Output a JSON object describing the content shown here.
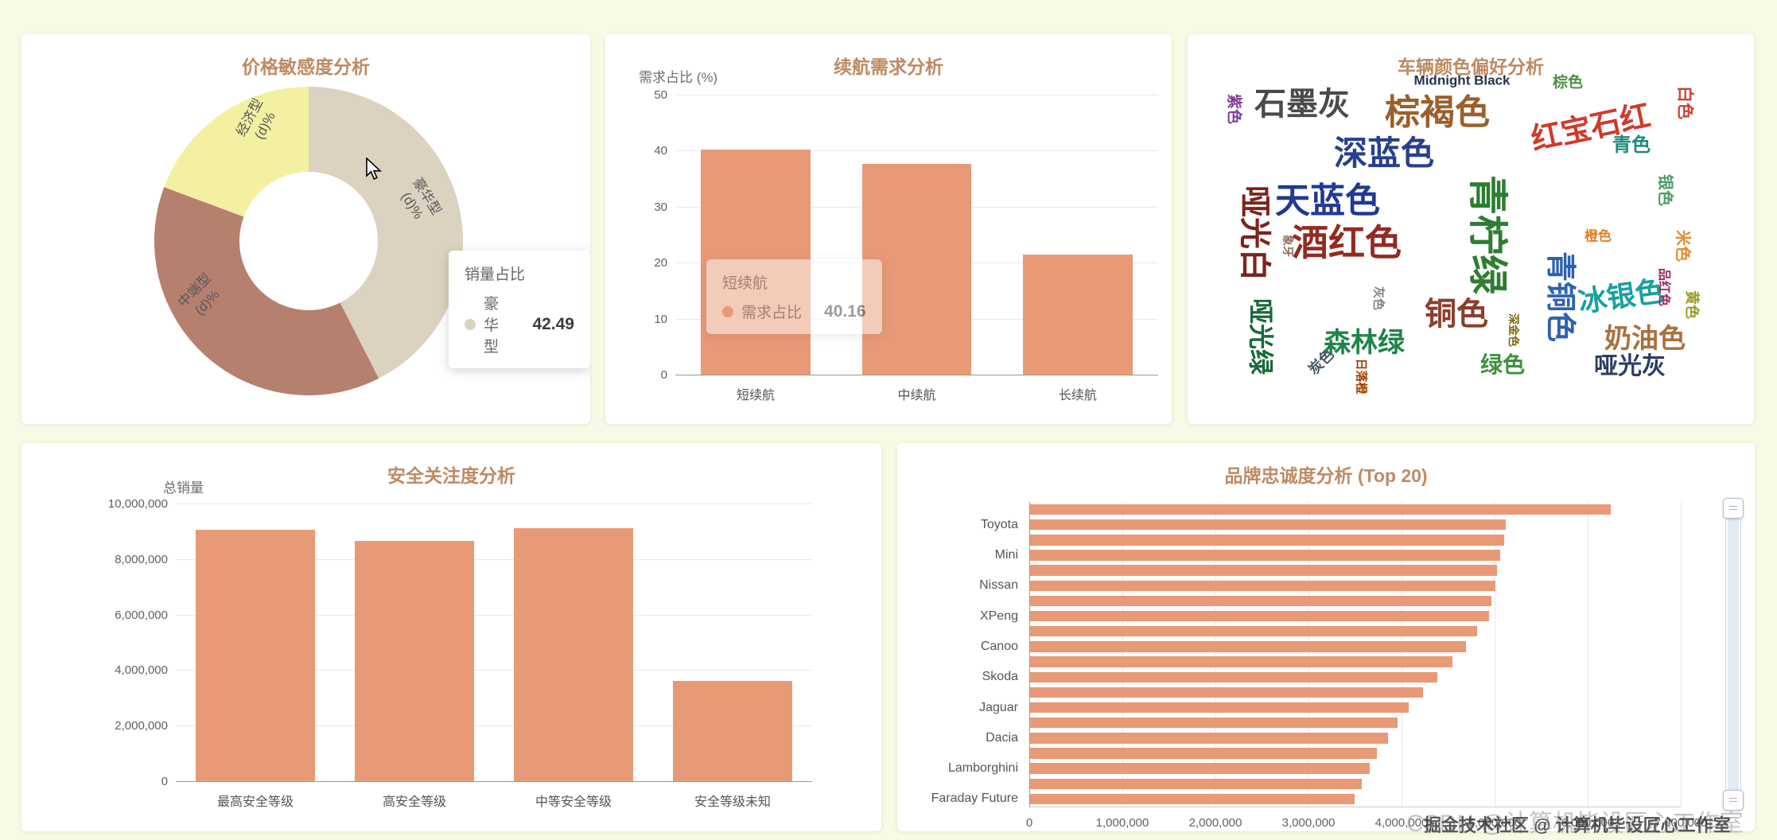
{
  "page": {
    "background_color": "#f8fae6",
    "card_background": "#ffffff",
    "title_color": "#bf8a62"
  },
  "watermarks": {
    "csdn": "CSDN @计算机毕设匠心工作室",
    "juejin": "掘金技术社区 @ 计算机毕设匠心工作室"
  },
  "chart_data": [
    {
      "id": "price-sensitivity-pie",
      "type": "pie",
      "title": "价格敏感度分析",
      "series_name": "销量占比",
      "slices": [
        {
          "name": "豪华型",
          "value": 42.49,
          "color": "#dcd2c0",
          "label": "豪华型\n(d)%"
        },
        {
          "name": "中端型",
          "value": 38.2,
          "color": "#b5806e",
          "label": "中端型\n(d)%"
        },
        {
          "name": "经济型",
          "value": 19.31,
          "color": "#f4f0a2",
          "label": "经济型\n(d)%"
        }
      ],
      "tooltip": {
        "title": "销量占比",
        "name": "豪华型",
        "value": "42.49",
        "marker_color": "#dcd2c0"
      }
    },
    {
      "id": "range-demand-bar",
      "type": "bar",
      "title": "续航需求分析",
      "ylabel": "需求占比 (%)",
      "categories": [
        "短续航",
        "中续航",
        "长续航"
      ],
      "values": [
        40.16,
        37.7,
        21.4
      ],
      "ylim": [
        0,
        50
      ],
      "yticks": [
        "0",
        "10",
        "20",
        "30",
        "40",
        "50"
      ],
      "ytick_values": [
        0,
        10,
        20,
        30,
        40,
        50
      ],
      "bar_color": "#e89a77",
      "tooltip": {
        "title": "短续航",
        "series": "需求占比",
        "value": "40.16",
        "marker_color": "#e89a77"
      }
    },
    {
      "id": "color-preference-wordcloud",
      "type": "wordcloud",
      "title": "车辆颜色偏好分析",
      "words": [
        {
          "text": "石墨灰",
          "x": 144,
          "y": 88,
          "size": 40,
          "color": "#4a4a4a",
          "rotate": 0
        },
        {
          "text": "棕褐色",
          "x": 314,
          "y": 99,
          "size": 44,
          "color": "#9a5f2a",
          "rotate": 0
        },
        {
          "text": "Midnight Black",
          "x": 345,
          "y": 58,
          "size": 17,
          "color": "#22334f",
          "rotate": 0
        },
        {
          "text": "棕色",
          "x": 478,
          "y": 61,
          "size": 19,
          "color": "#4c9141",
          "rotate": 0
        },
        {
          "text": "白色",
          "x": 625,
          "y": 86,
          "size": 21,
          "color": "#cb4335",
          "rotate": 90
        },
        {
          "text": "紫色",
          "x": 58,
          "y": 94,
          "size": 19,
          "color": "#7d3c98",
          "rotate": 90
        },
        {
          "text": "红宝石红",
          "x": 507,
          "y": 118,
          "size": 38,
          "color": "#d03a2b",
          "rotate": -12
        },
        {
          "text": "深蓝色",
          "x": 247,
          "y": 150,
          "size": 42,
          "color": "#27408b",
          "rotate": 0
        },
        {
          "text": "青色",
          "x": 558,
          "y": 140,
          "size": 24,
          "color": "#20897e",
          "rotate": 0
        },
        {
          "text": "银色",
          "x": 600,
          "y": 196,
          "size": 20,
          "color": "#4f9d69",
          "rotate": 90
        },
        {
          "text": "天蓝色",
          "x": 176,
          "y": 210,
          "size": 44,
          "color": "#1f3a93",
          "rotate": 0
        },
        {
          "text": "青柠绿",
          "x": 377,
          "y": 252,
          "size": 50,
          "color": "#2e7d32",
          "rotate": 90
        },
        {
          "text": "哑光白",
          "x": 84,
          "y": 250,
          "size": 40,
          "color": "#7b241c",
          "rotate": 90
        },
        {
          "text": "酒红色",
          "x": 200,
          "y": 262,
          "size": 46,
          "color": "#922b21",
          "rotate": 0
        },
        {
          "text": "象牙",
          "x": 126,
          "y": 266,
          "size": 14,
          "color": "#8d6e63",
          "rotate": 90
        },
        {
          "text": "青铜色",
          "x": 468,
          "y": 330,
          "size": 38,
          "color": "#2e61b0",
          "rotate": 90
        },
        {
          "text": "冰银色",
          "x": 545,
          "y": 330,
          "size": 36,
          "color": "#18a0a0",
          "rotate": -8
        },
        {
          "text": "米色",
          "x": 622,
          "y": 266,
          "size": 20,
          "color": "#e08e2d",
          "rotate": 90
        },
        {
          "text": "橙色",
          "x": 516,
          "y": 254,
          "size": 17,
          "color": "#e67e22",
          "rotate": 0
        },
        {
          "text": "铜色",
          "x": 338,
          "y": 352,
          "size": 40,
          "color": "#8c3d2b",
          "rotate": 0
        },
        {
          "text": "灰色",
          "x": 240,
          "y": 332,
          "size": 15,
          "color": "#808080",
          "rotate": 90
        },
        {
          "text": "森林绿",
          "x": 222,
          "y": 388,
          "size": 34,
          "color": "#1e8449",
          "rotate": 0
        },
        {
          "text": "哑光绿",
          "x": 92,
          "y": 380,
          "size": 32,
          "color": "#186a3b",
          "rotate": 90
        },
        {
          "text": "炭色",
          "x": 168,
          "y": 412,
          "size": 18,
          "color": "#455a64",
          "rotate": -45
        },
        {
          "text": "日落橙",
          "x": 218,
          "y": 430,
          "size": 15,
          "color": "#a04000",
          "rotate": 90
        },
        {
          "text": "绿色",
          "x": 396,
          "y": 416,
          "size": 28,
          "color": "#3d9140",
          "rotate": 0
        },
        {
          "text": "深金色",
          "x": 410,
          "y": 372,
          "size": 14,
          "color": "#7d6608",
          "rotate": 90
        },
        {
          "text": "奶油色",
          "x": 575,
          "y": 383,
          "size": 34,
          "color": "#a9713b",
          "rotate": 0
        },
        {
          "text": "哑光灰",
          "x": 556,
          "y": 418,
          "size": 30,
          "color": "#2c3e63",
          "rotate": 0
        },
        {
          "text": "黄色",
          "x": 634,
          "y": 340,
          "size": 18,
          "color": "#9a9a20",
          "rotate": 90
        },
        {
          "text": "品红色",
          "x": 598,
          "y": 318,
          "size": 16,
          "color": "#9b2d5d",
          "rotate": 90
        }
      ]
    },
    {
      "id": "safety-attention-bar",
      "type": "bar",
      "title": "安全关注度分析",
      "ylabel": "总销量",
      "categories": [
        "最高安全等级",
        "高安全等级",
        "中等安全等级",
        "安全等级未知"
      ],
      "values": [
        9050000,
        8650000,
        9100000,
        3600000
      ],
      "ylim": [
        0,
        10000000
      ],
      "yticks": [
        "0",
        "2,000,000",
        "4,000,000",
        "6,000,000",
        "8,000,000",
        "10,000,000"
      ],
      "ytick_values": [
        0,
        2000000,
        4000000,
        6000000,
        8000000,
        10000000
      ],
      "bar_color": "#e89a77"
    },
    {
      "id": "brand-loyalty-hbar",
      "type": "hbar",
      "title": "品牌忠诚度分析 (Top 20)",
      "xlim": [
        0,
        7000000
      ],
      "xticks": [
        "0",
        "1,000,000",
        "2,000,000",
        "3,000,000",
        "4,000,000",
        "5,000,000",
        "6,000,000",
        "7,000,000"
      ],
      "xtick_values": [
        0,
        1000000,
        2000000,
        3000000,
        4000000,
        5000000,
        6000000,
        7000000
      ],
      "bar_color": "#e89a77",
      "rows": [
        {
          "label": "",
          "value": 6240000
        },
        {
          "label": "Toyota",
          "value": 5110000
        },
        {
          "label": "",
          "value": 5090000
        },
        {
          "label": "Mini",
          "value": 5050000
        },
        {
          "label": "",
          "value": 5020000
        },
        {
          "label": "Nissan",
          "value": 5000000
        },
        {
          "label": "",
          "value": 4960000
        },
        {
          "label": "XPeng",
          "value": 4930000
        },
        {
          "label": "",
          "value": 4800000
        },
        {
          "label": "Canoo",
          "value": 4680000
        },
        {
          "label": "",
          "value": 4540000
        },
        {
          "label": "Skoda",
          "value": 4380000
        },
        {
          "label": "",
          "value": 4220000
        },
        {
          "label": "Jaguar",
          "value": 4070000
        },
        {
          "label": "",
          "value": 3950000
        },
        {
          "label": "Dacia",
          "value": 3850000
        },
        {
          "label": "",
          "value": 3730000
        },
        {
          "label": "Lamborghini",
          "value": 3650000
        },
        {
          "label": "",
          "value": 3560000
        },
        {
          "label": "Faraday Future",
          "value": 3490000
        }
      ]
    }
  ]
}
